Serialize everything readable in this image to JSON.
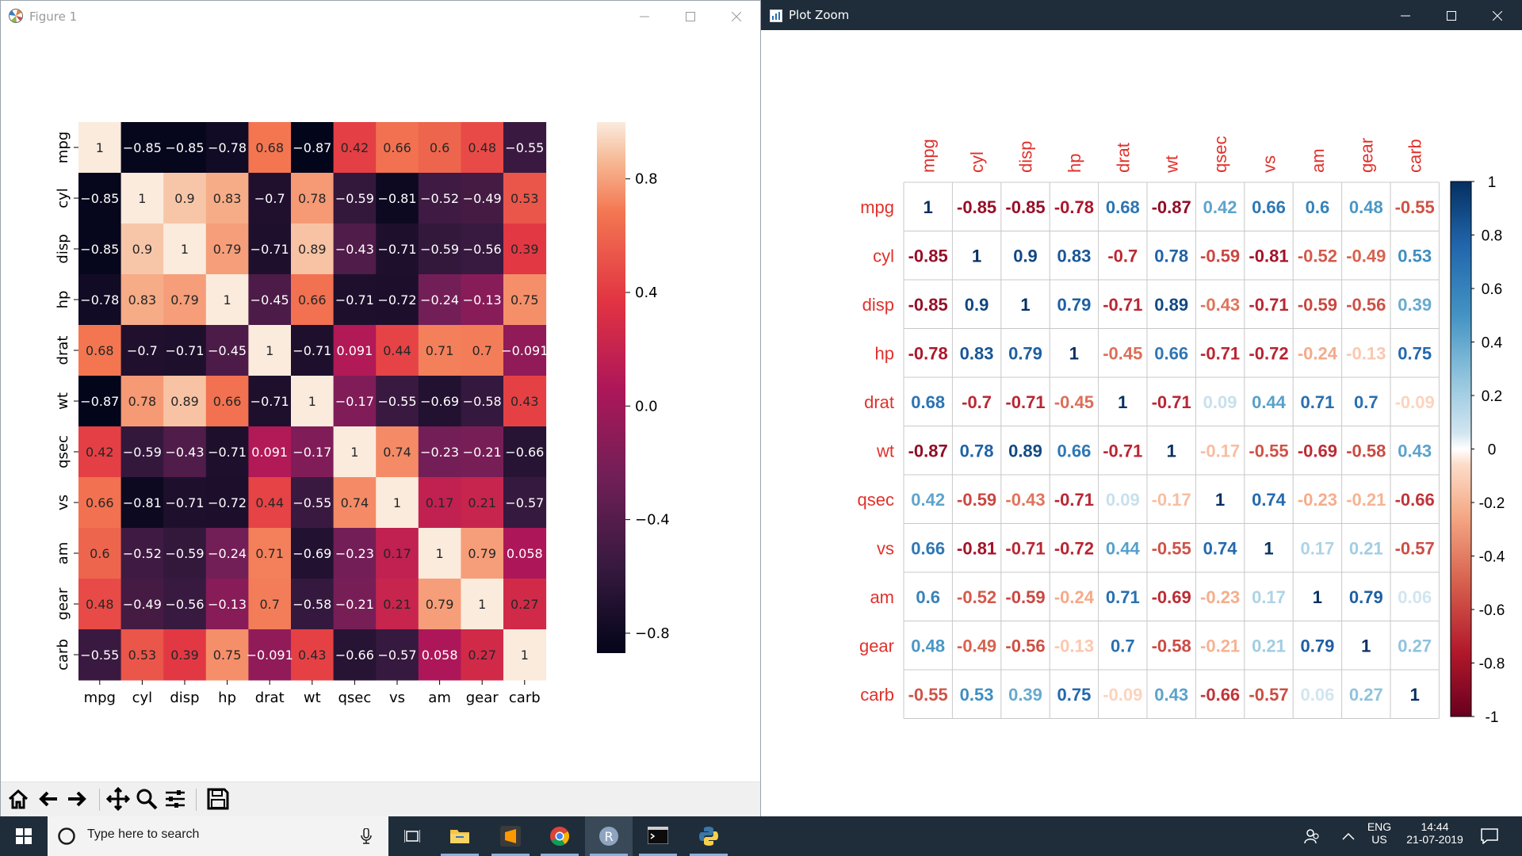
{
  "figure_window": {
    "title": "Figure 1",
    "icon": "matplotlib-icon",
    "controls": [
      "minimize-icon",
      "maximize-icon",
      "close-icon"
    ],
    "toolbar": [
      "home-icon",
      "back-icon",
      "forward-icon",
      "pan-icon",
      "zoom-icon",
      "configure-subplots-icon",
      "save-icon"
    ]
  },
  "rzoom_window": {
    "title": "Plot Zoom",
    "icon": "plot-zoom-icon",
    "controls": [
      "minimize-icon",
      "maximize-icon",
      "close-icon"
    ]
  },
  "taskbar": {
    "search_placeholder": "Type here to search",
    "apps": [
      "file-explorer-icon",
      "sublime-text-icon",
      "chrome-icon",
      "r-icon",
      "terminal-icon",
      "python-icon"
    ],
    "active_app": "r-icon",
    "language_line1": "ENG",
    "language_line2": "US",
    "time": "14:44",
    "date": "21-07-2019",
    "colors": {
      "bar": "#1f2d3a",
      "search_bg": "#f3f3f3"
    }
  },
  "chart_data": [
    {
      "type": "heatmap",
      "variables": [
        "mpg",
        "cyl",
        "disp",
        "hp",
        "drat",
        "wt",
        "qsec",
        "vs",
        "am",
        "gear",
        "carb"
      ],
      "matrix": [
        [
          1,
          -0.85,
          -0.85,
          -0.78,
          0.68,
          -0.87,
          0.42,
          0.66,
          0.6,
          0.48,
          -0.55
        ],
        [
          -0.85,
          1,
          0.9,
          0.83,
          -0.7,
          0.78,
          -0.59,
          -0.81,
          -0.52,
          -0.49,
          0.53
        ],
        [
          -0.85,
          0.9,
          1,
          0.79,
          -0.71,
          0.89,
          -0.43,
          -0.71,
          -0.59,
          -0.56,
          0.39
        ],
        [
          -0.78,
          0.83,
          0.79,
          1,
          -0.45,
          0.66,
          -0.71,
          -0.72,
          -0.24,
          -0.13,
          0.75
        ],
        [
          0.68,
          -0.7,
          -0.71,
          -0.45,
          1,
          -0.71,
          0.091,
          0.44,
          0.71,
          0.7,
          -0.091
        ],
        [
          -0.87,
          0.78,
          0.89,
          0.66,
          -0.71,
          1,
          -0.17,
          -0.55,
          -0.69,
          -0.58,
          0.43
        ],
        [
          0.42,
          -0.59,
          -0.43,
          -0.71,
          0.091,
          -0.17,
          1,
          0.74,
          -0.23,
          -0.21,
          -0.66
        ],
        [
          0.66,
          -0.81,
          -0.71,
          -0.72,
          0.44,
          -0.55,
          0.74,
          1,
          0.17,
          0.21,
          -0.57
        ],
        [
          0.6,
          -0.52,
          -0.59,
          -0.24,
          0.71,
          -0.69,
          -0.23,
          0.17,
          1,
          0.79,
          0.058
        ],
        [
          0.48,
          -0.49,
          -0.56,
          -0.13,
          0.7,
          -0.58,
          -0.21,
          0.21,
          0.79,
          1,
          0.27
        ],
        [
          -0.55,
          0.53,
          0.39,
          0.75,
          -0.091,
          0.43,
          -0.66,
          -0.57,
          0.058,
          0.27,
          1
        ]
      ],
      "colorbar_ticks": [
        "0.8",
        "0.4",
        "0.0",
        "−0.4",
        "−0.8"
      ],
      "colorbar_tick_values": [
        0.8,
        0.4,
        0.0,
        -0.4,
        -0.8
      ],
      "colormap": "rocket",
      "annotated": true
    },
    {
      "type": "heatmap",
      "variables": [
        "mpg",
        "cyl",
        "disp",
        "hp",
        "drat",
        "wt",
        "qsec",
        "vs",
        "am",
        "gear",
        "carb"
      ],
      "matrix": [
        [
          1,
          -0.85,
          -0.85,
          -0.78,
          0.68,
          -0.87,
          0.42,
          0.66,
          0.6,
          0.48,
          -0.55
        ],
        [
          -0.85,
          1,
          0.9,
          0.83,
          -0.7,
          0.78,
          -0.59,
          -0.81,
          -0.52,
          -0.49,
          0.53
        ],
        [
          -0.85,
          0.9,
          1,
          0.79,
          -0.71,
          0.89,
          -0.43,
          -0.71,
          -0.59,
          -0.56,
          0.39
        ],
        [
          -0.78,
          0.83,
          0.79,
          1,
          -0.45,
          0.66,
          -0.71,
          -0.72,
          -0.24,
          -0.13,
          0.75
        ],
        [
          0.68,
          -0.7,
          -0.71,
          -0.45,
          1,
          -0.71,
          0.09,
          0.44,
          0.71,
          0.7,
          -0.09
        ],
        [
          -0.87,
          0.78,
          0.89,
          0.66,
          -0.71,
          1,
          -0.17,
          -0.55,
          -0.69,
          -0.58,
          0.43
        ],
        [
          0.42,
          -0.59,
          -0.43,
          -0.71,
          0.09,
          -0.17,
          1,
          0.74,
          -0.23,
          -0.21,
          -0.66
        ],
        [
          0.66,
          -0.81,
          -0.71,
          -0.72,
          0.44,
          -0.55,
          0.74,
          1,
          0.17,
          0.21,
          -0.57
        ],
        [
          0.6,
          -0.52,
          -0.59,
          -0.24,
          0.71,
          -0.69,
          -0.23,
          0.17,
          1,
          0.79,
          0.06
        ],
        [
          0.48,
          -0.49,
          -0.56,
          -0.13,
          0.7,
          -0.58,
          -0.21,
          0.21,
          0.79,
          1,
          0.27
        ],
        [
          -0.55,
          0.53,
          0.39,
          0.75,
          -0.09,
          0.43,
          -0.66,
          -0.57,
          0.06,
          0.27,
          1
        ]
      ],
      "colorbar_ticks": [
        "1",
        "0.8",
        "0.6",
        "0.4",
        "0.2",
        "0",
        "-0.2",
        "-0.4",
        "-0.6",
        "-0.8",
        "-1"
      ],
      "colorbar_tick_values": [
        1,
        0.8,
        0.6,
        0.4,
        0.2,
        0,
        -0.2,
        -0.4,
        -0.6,
        -0.8,
        -1
      ],
      "colormap": "red-white-blue",
      "method": "number",
      "label_color": "#e0312b",
      "grid": true
    }
  ]
}
